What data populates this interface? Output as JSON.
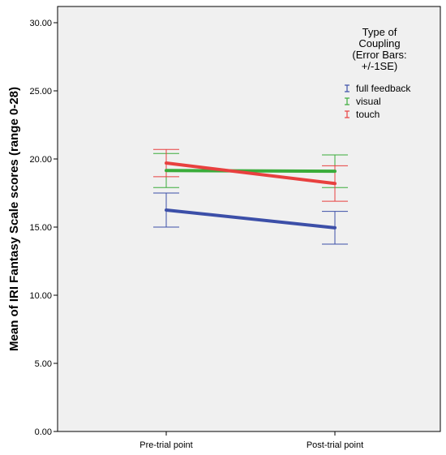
{
  "chart_data": {
    "type": "line",
    "title": "",
    "xlabel": "",
    "ylabel": "Mean of IRI Fantasy Scale scores (range 0-28)",
    "categories": [
      "Pre-trial point",
      "Post-trial point"
    ],
    "ylim": [
      0,
      30
    ],
    "yticks": [
      "0.00",
      "5.00",
      "10.00",
      "15.00",
      "20.00",
      "25.00",
      "30.00"
    ],
    "grid": false,
    "legend": {
      "title": [
        "Type of",
        "Coupling",
        "(Error Bars:",
        "+/-1SE)"
      ],
      "position": "top-right"
    },
    "series": [
      {
        "name": "full feedback",
        "color": "#3c4fa8",
        "values": [
          16.25,
          14.95
        ],
        "error": [
          1.25,
          1.2
        ]
      },
      {
        "name": "visual",
        "color": "#3aac3a",
        "values": [
          19.15,
          19.1
        ],
        "error": [
          1.25,
          1.2
        ]
      },
      {
        "name": "touch",
        "color": "#e8403f",
        "values": [
          19.7,
          18.2
        ],
        "error": [
          1.0,
          1.3
        ]
      }
    ]
  }
}
